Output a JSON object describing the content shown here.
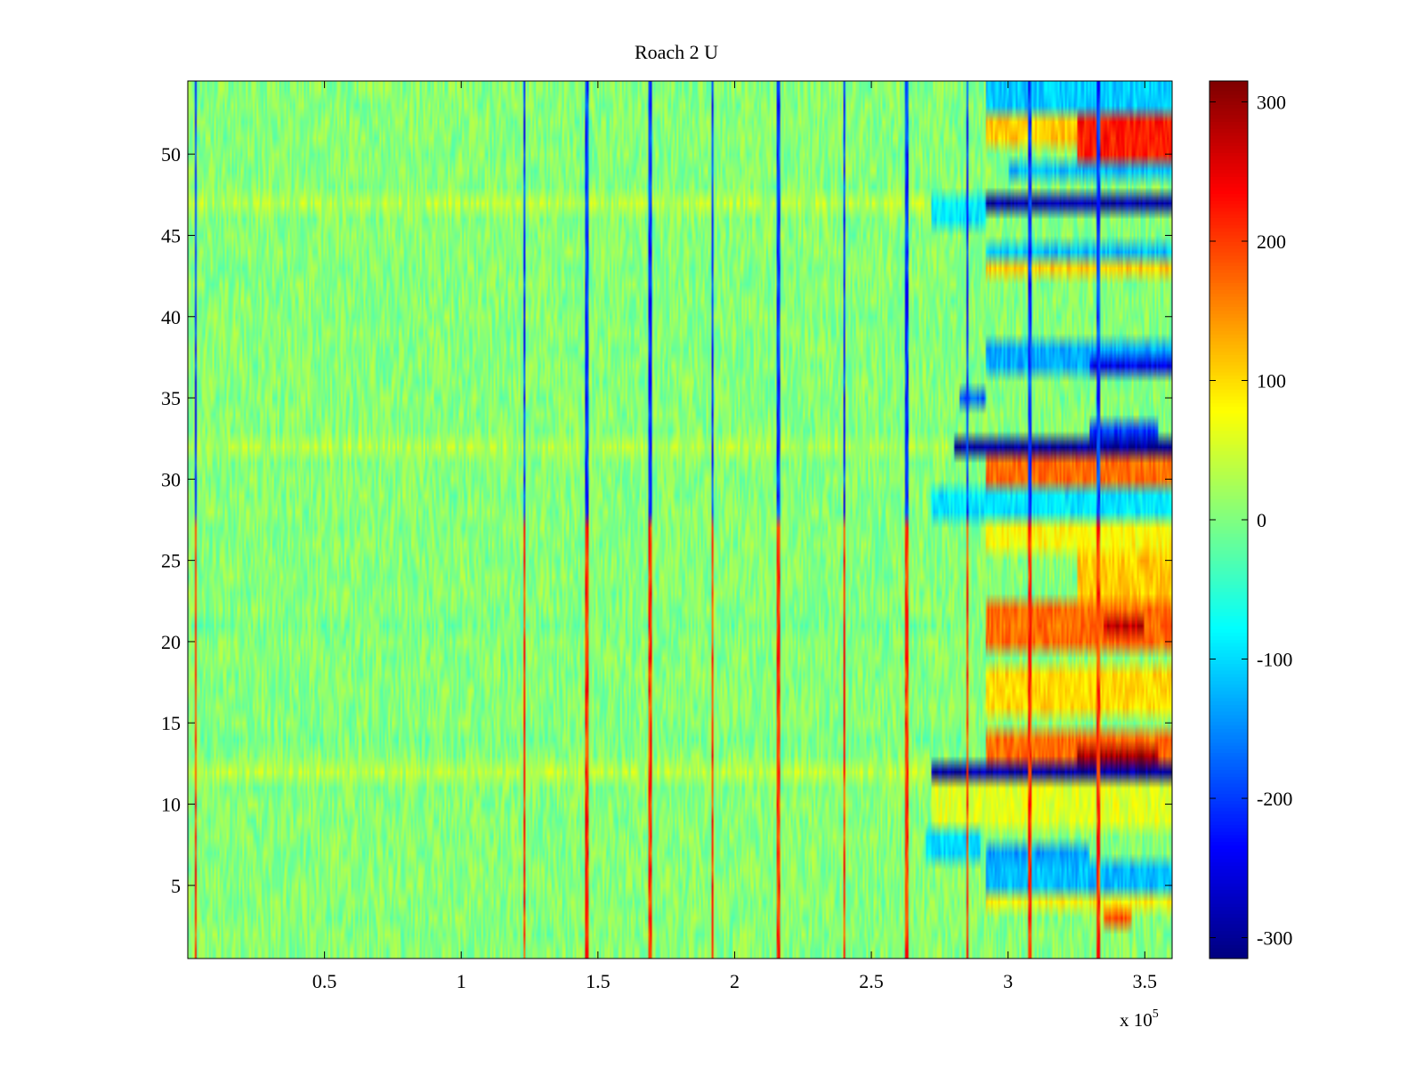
{
  "chart_data": {
    "type": "heatmap",
    "title": "Roach 2 U",
    "xlabel": "",
    "ylabel": "",
    "x_exponent_label": {
      "base": "x 10",
      "exp": "5"
    },
    "xlim": [
      0,
      360000
    ],
    "ylim": [
      0.5,
      54.5
    ],
    "x_ticks": [
      50000,
      100000,
      150000,
      200000,
      250000,
      300000,
      350000
    ],
    "x_tick_labels": [
      "0.5",
      "1",
      "1.5",
      "2",
      "2.5",
      "3",
      "3.5"
    ],
    "y_ticks": [
      5,
      10,
      15,
      20,
      25,
      30,
      35,
      40,
      45,
      50
    ],
    "y_tick_labels": [
      "5",
      "10",
      "15",
      "20",
      "25",
      "30",
      "35",
      "40",
      "45",
      "50"
    ],
    "colorbar": {
      "range": [
        -315,
        315
      ],
      "ticks": [
        300,
        200,
        100,
        0,
        -100,
        -200,
        -300
      ],
      "tick_labels": [
        "300",
        "200",
        "100",
        "0",
        "-100",
        "-200",
        "-300"
      ],
      "colormap": "jet"
    },
    "rows": 54,
    "baseline_value": 5,
    "baseline_noise": 35,
    "row_offsets": [
      {
        "row": 12,
        "value": 30
      },
      {
        "row": 32,
        "value": 25
      },
      {
        "row": 47,
        "value": 30
      },
      {
        "row": 21,
        "value": -10
      },
      {
        "row": 14,
        "value": -10
      }
    ],
    "vertical_spikes": [
      {
        "x": 3000,
        "sign": 1
      },
      {
        "x": 123000,
        "sign": 1
      },
      {
        "x": 146000,
        "sign": 1
      },
      {
        "x": 169000,
        "sign": 1
      },
      {
        "x": 192000,
        "sign": 1
      },
      {
        "x": 216000,
        "sign": 1
      },
      {
        "x": 240000,
        "sign": 1
      },
      {
        "x": 263000,
        "sign": 1
      },
      {
        "x": 285000,
        "sign": 1
      },
      {
        "x": 308000,
        "sign": 1
      },
      {
        "x": 333000,
        "sign": 1
      }
    ],
    "high_activity_bands": [
      {
        "rows": [
          53,
          54
        ],
        "x": [
          292000,
          360000
        ],
        "value": -110
      },
      {
        "rows": [
          51,
          52
        ],
        "x": [
          292000,
          360000
        ],
        "value": 110
      },
      {
        "rows": [
          50,
          52
        ],
        "x": [
          325000,
          360000
        ],
        "value": 220
      },
      {
        "rows": [
          49,
          49
        ],
        "x": [
          300000,
          360000
        ],
        "value": -120
      },
      {
        "rows": [
          47,
          47
        ],
        "x": [
          292000,
          360000
        ],
        "value": -290
      },
      {
        "rows": [
          46,
          47
        ],
        "x": [
          272000,
          292000
        ],
        "value": -90
      },
      {
        "rows": [
          44,
          44
        ],
        "x": [
          292000,
          360000
        ],
        "value": -120
      },
      {
        "rows": [
          43,
          43
        ],
        "x": [
          292000,
          360000
        ],
        "value": 110
      },
      {
        "rows": [
          37,
          38
        ],
        "x": [
          292000,
          360000
        ],
        "value": -130
      },
      {
        "rows": [
          37,
          37
        ],
        "x": [
          330000,
          360000
        ],
        "value": -250
      },
      {
        "rows": [
          35,
          35
        ],
        "x": [
          282000,
          292000
        ],
        "value": -180
      },
      {
        "rows": [
          33,
          33
        ],
        "x": [
          330000,
          355000
        ],
        "value": -200
      },
      {
        "rows": [
          32,
          32
        ],
        "x": [
          280000,
          360000
        ],
        "value": -300
      },
      {
        "rows": [
          30,
          31
        ],
        "x": [
          292000,
          360000
        ],
        "value": 170
      },
      {
        "rows": [
          28,
          29
        ],
        "x": [
          272000,
          360000
        ],
        "value": -90
      },
      {
        "rows": [
          26,
          27
        ],
        "x": [
          292000,
          360000
        ],
        "value": 80
      },
      {
        "rows": [
          23,
          25
        ],
        "x": [
          325000,
          360000
        ],
        "value": 110
      },
      {
        "rows": [
          20,
          22
        ],
        "x": [
          292000,
          360000
        ],
        "value": 170
      },
      {
        "rows": [
          21,
          21
        ],
        "x": [
          335000,
          350000
        ],
        "value": 270
      },
      {
        "rows": [
          16,
          18
        ],
        "x": [
          292000,
          360000
        ],
        "value": 100
      },
      {
        "rows": [
          13,
          14
        ],
        "x": [
          292000,
          360000
        ],
        "value": 170
      },
      {
        "rows": [
          13,
          13
        ],
        "x": [
          325000,
          355000
        ],
        "value": 290
      },
      {
        "rows": [
          12,
          12
        ],
        "x": [
          272000,
          360000
        ],
        "value": -290
      },
      {
        "rows": [
          9,
          11
        ],
        "x": [
          272000,
          360000
        ],
        "value": 60
      },
      {
        "rows": [
          7,
          8
        ],
        "x": [
          270000,
          290000
        ],
        "value": -100
      },
      {
        "rows": [
          7,
          7
        ],
        "x": [
          292000,
          330000
        ],
        "value": -140
      },
      {
        "rows": [
          5,
          6
        ],
        "x": [
          292000,
          360000
        ],
        "value": -120
      },
      {
        "rows": [
          3,
          4
        ],
        "x": [
          335000,
          345000
        ],
        "value": 190
      },
      {
        "rows": [
          4,
          4
        ],
        "x": [
          292000,
          360000
        ],
        "value": 80
      }
    ]
  }
}
